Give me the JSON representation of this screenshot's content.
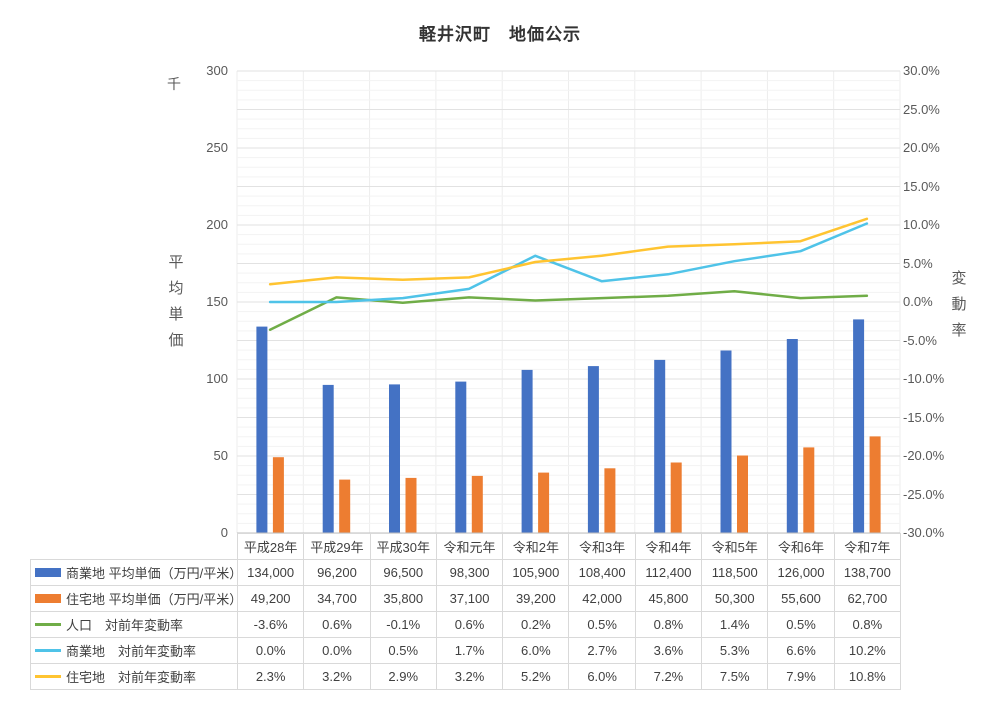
{
  "title": "軽井沢町　地価公示",
  "chart_data": {
    "type": "combo",
    "categories": [
      "平成28年",
      "平成29年",
      "平成30年",
      "令和元年",
      "令和2年",
      "令和3年",
      "令和4年",
      "令和5年",
      "令和6年",
      "令和7年"
    ],
    "series": [
      {
        "name": "商業地 平均単価（万円/平米）",
        "type": "bar",
        "axis": "left",
        "color": "#4472C4",
        "values": [
          134000,
          96200,
          96500,
          98300,
          105900,
          108400,
          112400,
          118500,
          126000,
          138700
        ]
      },
      {
        "name": "住宅地 平均単価（万円/平米）",
        "type": "bar",
        "axis": "left",
        "color": "#ED7D31",
        "values": [
          49200,
          34700,
          35800,
          37100,
          39200,
          42000,
          45800,
          50300,
          55600,
          62700
        ]
      },
      {
        "name": "人口　対前年変動率",
        "type": "line",
        "axis": "right",
        "color": "#70AD47",
        "values": [
          -3.6,
          0.6,
          -0.1,
          0.6,
          0.2,
          0.5,
          0.8,
          1.4,
          0.5,
          0.8
        ]
      },
      {
        "name": "商業地　対前年変動率",
        "type": "line",
        "axis": "right",
        "color": "#4FC3E8",
        "values": [
          0.0,
          0.0,
          0.5,
          1.7,
          6.0,
          2.7,
          3.6,
          5.3,
          6.6,
          10.2
        ]
      },
      {
        "name": "住宅地　対前年変動率",
        "type": "line",
        "axis": "right",
        "color": "#FFC431",
        "values": [
          2.3,
          3.2,
          2.9,
          3.2,
          5.2,
          6.0,
          7.2,
          7.5,
          7.9,
          10.8
        ]
      }
    ],
    "left_axis": {
      "unit_label": "千",
      "title": "平均単価",
      "min": 0,
      "max": 300,
      "major_step": 50,
      "minor_step": 6.25,
      "tick_labels": [
        "300",
        "250",
        "200",
        "150",
        "100",
        "50",
        "0"
      ]
    },
    "right_axis": {
      "title": "変動率",
      "min": -30,
      "max": 30,
      "step": 5,
      "tick_labels": [
        "30.0%",
        "25.0%",
        "20.0%",
        "15.0%",
        "10.0%",
        "5.0%",
        "0.0%",
        "-5.0%",
        "-10.0%",
        "-15.0%",
        "-20.0%",
        "-25.0%",
        "-30.0%"
      ]
    },
    "grid": true,
    "legend_position": "data-table-left-column"
  },
  "data_table": {
    "header": [
      "平成28年",
      "平成29年",
      "平成30年",
      "令和元年",
      "令和2年",
      "令和3年",
      "令和4年",
      "令和5年",
      "令和6年",
      "令和7年"
    ],
    "rows": [
      {
        "label": "商業地 平均単価（万円/平米）",
        "swatch": "bar",
        "color": "#4472C4",
        "values": [
          "134,000",
          "96,200",
          "96,500",
          "98,300",
          "105,900",
          "108,400",
          "112,400",
          "118,500",
          "126,000",
          "138,700"
        ]
      },
      {
        "label": "住宅地 平均単価（万円/平米）",
        "swatch": "bar",
        "color": "#ED7D31",
        "values": [
          "49,200",
          "34,700",
          "35,800",
          "37,100",
          "39,200",
          "42,000",
          "45,800",
          "50,300",
          "55,600",
          "62,700"
        ]
      },
      {
        "label": "人口　対前年変動率",
        "swatch": "line",
        "color": "#70AD47",
        "values": [
          "-3.6%",
          "0.6%",
          "-0.1%",
          "0.6%",
          "0.2%",
          "0.5%",
          "0.8%",
          "1.4%",
          "0.5%",
          "0.8%"
        ]
      },
      {
        "label": "商業地　対前年変動率",
        "swatch": "line",
        "color": "#4FC3E8",
        "values": [
          "0.0%",
          "0.0%",
          "0.5%",
          "1.7%",
          "6.0%",
          "2.7%",
          "3.6%",
          "5.3%",
          "6.6%",
          "10.2%"
        ]
      },
      {
        "label": "住宅地　対前年変動率",
        "swatch": "line",
        "color": "#FFC431",
        "values": [
          "2.3%",
          "3.2%",
          "2.9%",
          "3.2%",
          "5.2%",
          "6.0%",
          "7.2%",
          "7.5%",
          "7.9%",
          "10.8%"
        ]
      }
    ]
  }
}
